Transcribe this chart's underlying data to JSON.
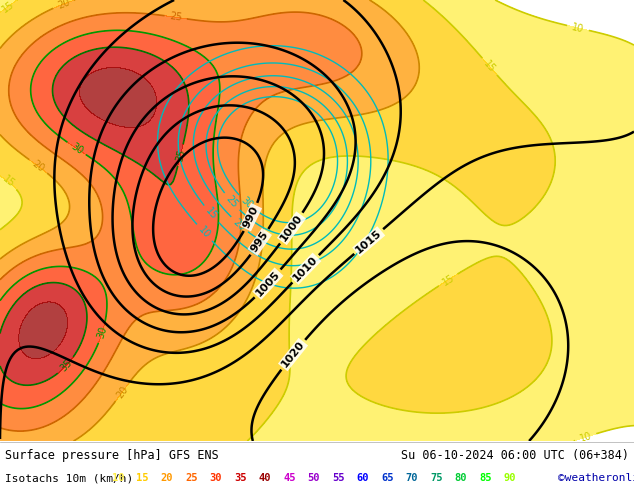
{
  "title_left": "Surface pressure [hPa] GFS ENS",
  "title_right": "Su 06-10-2024 06:00 UTC (06+384)",
  "legend_label": "Isotachs 10m (km/h)",
  "legend_values": [
    10,
    15,
    20,
    25,
    30,
    35,
    40,
    45,
    50,
    55,
    60,
    65,
    70,
    75,
    80,
    85,
    90
  ],
  "legend_colors": [
    "#ffee44",
    "#ffcc00",
    "#ff9900",
    "#ff6600",
    "#ff3300",
    "#cc0000",
    "#990000",
    "#cc00cc",
    "#9900cc",
    "#6600cc",
    "#0000ff",
    "#0033cc",
    "#006699",
    "#009966",
    "#00cc33",
    "#00ff00",
    "#99ff00"
  ],
  "copyright": "©weatheronline.co.uk",
  "bg_color": "#d4edcc",
  "footer_bg": "#f0f0f0",
  "pressure_color": "#000000",
  "cyan_contour_color": "#00bbbb",
  "figsize": [
    6.34,
    4.9
  ],
  "dpi": 100
}
